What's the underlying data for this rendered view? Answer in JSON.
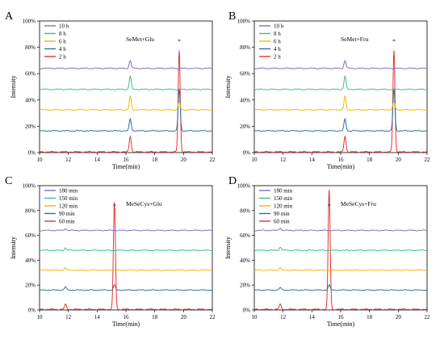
{
  "chart_data": [
    {
      "letter": "A",
      "type": "line",
      "title": "SeMet+Glu",
      "xlabel": "Time(min)",
      "ylabel": "Intensity",
      "xlim": [
        10,
        22
      ],
      "xticks": [
        "10",
        "12",
        "14",
        "16",
        "18",
        "20",
        "22"
      ],
      "ylim": [
        0,
        100
      ],
      "yticks": [
        "0%",
        "20%",
        "40%",
        "60%",
        "80%",
        "100%"
      ],
      "star_x": 19.7,
      "peaks": [
        16.3,
        19.7
      ],
      "series": [
        {
          "name": "10 h",
          "color": "#7b72b8",
          "baseline": 64,
          "heights": [
            6,
            0
          ]
        },
        {
          "name": "8 h",
          "color": "#3fbf85",
          "baseline": 48,
          "heights": [
            10,
            0
          ]
        },
        {
          "name": "6 h",
          "color": "#f2b705",
          "baseline": 32.5,
          "heights": [
            10,
            6
          ]
        },
        {
          "name": "4 h",
          "color": "#2f6f9f",
          "baseline": 16.5,
          "heights": [
            9,
            32
          ]
        },
        {
          "name": "2 h",
          "color": "#e63333",
          "baseline": 0.5,
          "heights": [
            12,
            77
          ]
        }
      ]
    },
    {
      "letter": "B",
      "type": "line",
      "title": "SeMet+Fru",
      "xlabel": "Time(min)",
      "ylabel": "Intensity",
      "xlim": [
        10,
        22
      ],
      "xticks": [
        "10",
        "12",
        "14",
        "16",
        "18",
        "20",
        "22"
      ],
      "ylim": [
        0,
        100
      ],
      "yticks": [
        "0%",
        "20%",
        "40%",
        "60%",
        "80%",
        "100%"
      ],
      "star_x": 19.7,
      "peaks": [
        16.3,
        19.7
      ],
      "series": [
        {
          "name": "10 h",
          "color": "#7b72b8",
          "baseline": 64,
          "heights": [
            6,
            0
          ]
        },
        {
          "name": "8 h",
          "color": "#3fbf85",
          "baseline": 48,
          "heights": [
            10,
            0
          ]
        },
        {
          "name": "6 h",
          "color": "#f2b705",
          "baseline": 32.5,
          "heights": [
            10,
            6
          ]
        },
        {
          "name": "4 h",
          "color": "#2f6f9f",
          "baseline": 16.5,
          "heights": [
            9,
            32
          ]
        },
        {
          "name": "2 h",
          "color": "#e63333",
          "baseline": 0.5,
          "heights": [
            12,
            77
          ]
        }
      ]
    },
    {
      "letter": "C",
      "type": "line",
      "title": "MeSeCys+Glu",
      "xlabel": "Time(min)",
      "ylabel": "Intensity",
      "xlim": [
        10,
        22
      ],
      "xticks": [
        "10",
        "12",
        "14",
        "16",
        "18",
        "20",
        "22"
      ],
      "ylim": [
        0,
        100
      ],
      "yticks": [
        "0%",
        "20%",
        "40%",
        "60%",
        "80%",
        "100%"
      ],
      "star_x": 15.2,
      "peaks": [
        11.8,
        15.2
      ],
      "series": [
        {
          "name": "180 min",
          "color": "#7b72b8",
          "baseline": 64,
          "heights": [
            1.5,
            0
          ]
        },
        {
          "name": "150 min",
          "color": "#3fbf85",
          "baseline": 48,
          "heights": [
            2,
            0
          ]
        },
        {
          "name": "120 min",
          "color": "#f2b705",
          "baseline": 32,
          "heights": [
            2,
            0
          ]
        },
        {
          "name": "90 min",
          "color": "#2f6f9f",
          "baseline": 16,
          "heights": [
            2.5,
            4
          ]
        },
        {
          "name": "60 min",
          "color": "#e63333",
          "baseline": 0.5,
          "heights": [
            4,
            86
          ]
        }
      ]
    },
    {
      "letter": "D",
      "type": "line",
      "title": "MeSeCys+Fru",
      "xlabel": "Time(min)",
      "ylabel": "Intensity",
      "xlim": [
        10,
        22
      ],
      "xticks": [
        "10",
        "12",
        "14",
        "16",
        "18",
        "20",
        "22"
      ],
      "ylim": [
        0,
        100
      ],
      "yticks": [
        "0%",
        "20%",
        "40%",
        "60%",
        "80%",
        "100%"
      ],
      "star_x": 15.2,
      "peaks": [
        11.8,
        15.2
      ],
      "series": [
        {
          "name": "180 min",
          "color": "#7b72b8",
          "baseline": 64,
          "heights": [
            2,
            0
          ]
        },
        {
          "name": "150 min",
          "color": "#3fbf85",
          "baseline": 48,
          "heights": [
            2.5,
            0
          ]
        },
        {
          "name": "120 min",
          "color": "#f2b705",
          "baseline": 32,
          "heights": [
            2,
            0
          ]
        },
        {
          "name": "90 min",
          "color": "#2f6f9f",
          "baseline": 16,
          "heights": [
            2,
            4
          ]
        },
        {
          "name": "60 min",
          "color": "#e63333",
          "baseline": 0.5,
          "heights": [
            4,
            96
          ]
        }
      ]
    }
  ]
}
